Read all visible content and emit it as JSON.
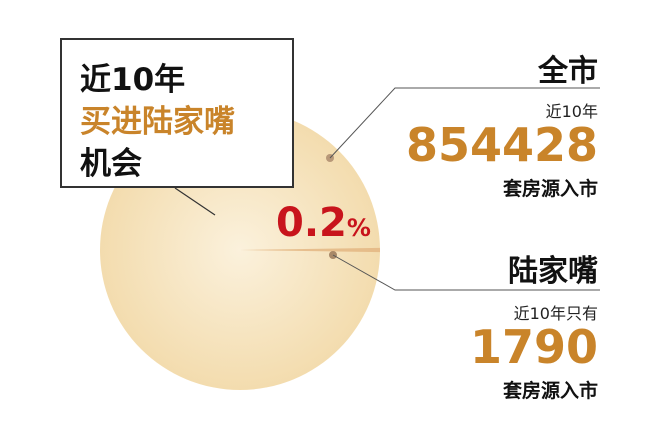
{
  "colors": {
    "pie": "#f6e3bf",
    "slice": "#e2b480",
    "accent": "#c9842a",
    "highlight": "#c8141c",
    "text": "#111111"
  },
  "callout": {
    "line1": "近10年",
    "line2": "买进陆家嘴",
    "line3": "机会"
  },
  "city": {
    "title": "全市",
    "sub": "近10年",
    "number": "854428",
    "unit": "套房源入市"
  },
  "ljz": {
    "title": "陆家嘴",
    "sub": "近10年只有",
    "number": "1790",
    "unit": "套房源入市"
  },
  "chart_data": {
    "type": "pie",
    "categories": [
      "全市",
      "陆家嘴"
    ],
    "values": [
      854428,
      1790
    ],
    "data_labels": {
      "percent_value": "0.2",
      "percent_sign": "%"
    }
  }
}
